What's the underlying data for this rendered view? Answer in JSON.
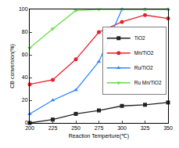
{
  "chart_data": {
    "type": "line",
    "x": [
      200,
      225,
      250,
      275,
      300,
      325,
      350
    ],
    "x_label": "Reaction Temperture(℃)",
    "y_label": "CB conversion(%)",
    "xlim": [
      200,
      350
    ],
    "xticks": [
      200,
      225,
      250,
      275,
      300,
      325,
      350
    ],
    "ylim": [
      0,
      100
    ],
    "yticks": [
      0,
      20,
      40,
      60,
      80,
      100
    ],
    "grid": false,
    "legend": "center right",
    "series": [
      {
        "name": "TiO2",
        "color": "#222222",
        "marker": "square",
        "values": [
          0,
          3,
          8,
          11,
          15,
          16,
          18
        ]
      },
      {
        "name": "Mn/TiO2",
        "color": "#e8202a",
        "marker": "circle",
        "values": [
          34,
          38,
          56,
          80,
          89,
          95,
          92
        ]
      },
      {
        "name": "Ru/TiO2",
        "color": "#3388ff",
        "marker": "triangle-up",
        "values": [
          8,
          20,
          29,
          54,
          100,
          100,
          100
        ]
      },
      {
        "name": "Ru Mn/TiO2",
        "color": "#66dd44",
        "marker": "triangle-down",
        "values": [
          66,
          83,
          99,
          100,
          100,
          100,
          100
        ]
      }
    ]
  }
}
